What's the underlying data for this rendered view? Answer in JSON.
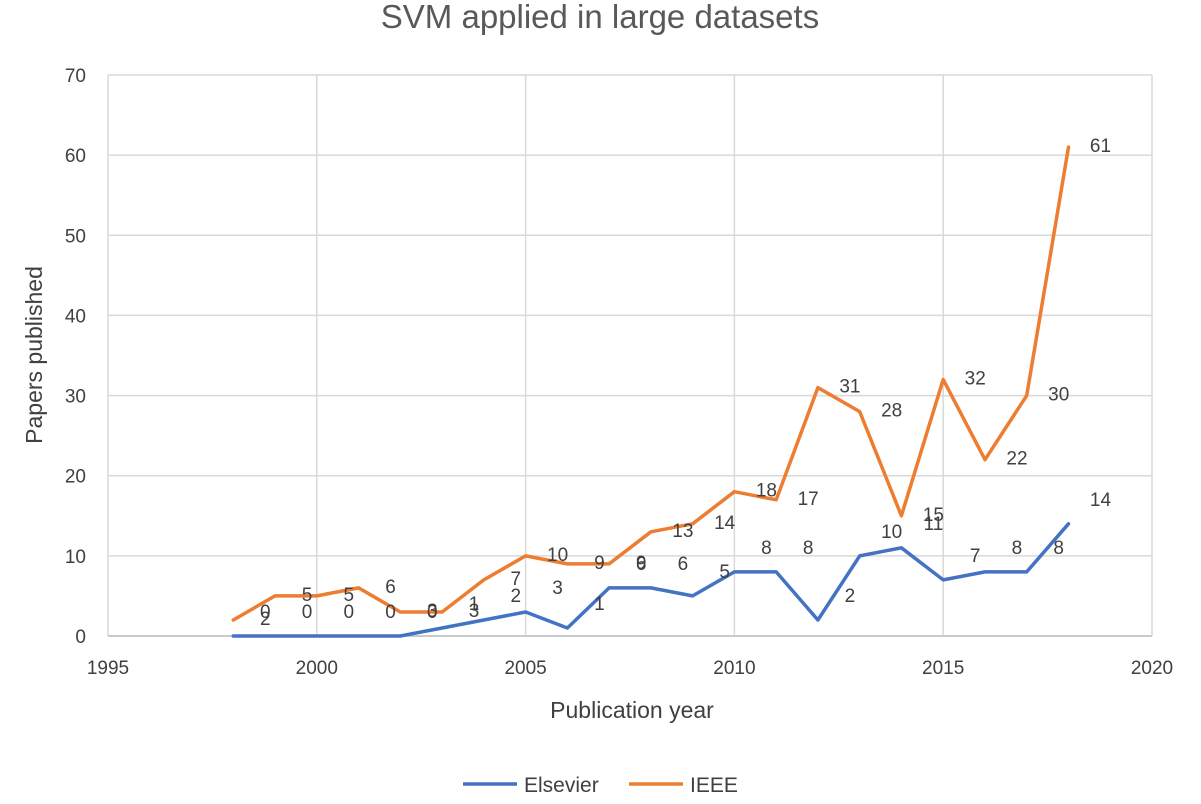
{
  "chart_data": {
    "type": "line",
    "title": "SVM applied in large datasets",
    "xlabel": "Publication year",
    "ylabel": "Papers published",
    "xlim": [
      1995,
      2020
    ],
    "ylim": [
      0,
      70
    ],
    "xticks": [
      1995,
      2000,
      2005,
      2010,
      2015,
      2020
    ],
    "yticks": [
      0,
      10,
      20,
      30,
      40,
      50,
      60,
      70
    ],
    "grid": true,
    "legend_position": "bottom",
    "x": [
      1998,
      1999,
      2000,
      2001,
      2002,
      2003,
      2004,
      2005,
      2006,
      2007,
      2008,
      2009,
      2010,
      2011,
      2012,
      2013,
      2014,
      2015,
      2016,
      2017,
      2018
    ],
    "series": [
      {
        "name": "Elsevier",
        "color": "#4472c4",
        "values": [
          0,
          0,
          0,
          0,
          0,
          1,
          2,
          3,
          1,
          6,
          6,
          5,
          8,
          8,
          2,
          10,
          11,
          7,
          8,
          8,
          14
        ]
      },
      {
        "name": "IEEE",
        "color": "#ed7d31",
        "values": [
          2,
          5,
          5,
          6,
          3,
          3,
          7,
          10,
          9,
          9,
          13,
          14,
          18,
          17,
          31,
          28,
          15,
          32,
          22,
          30,
          61
        ]
      }
    ]
  }
}
